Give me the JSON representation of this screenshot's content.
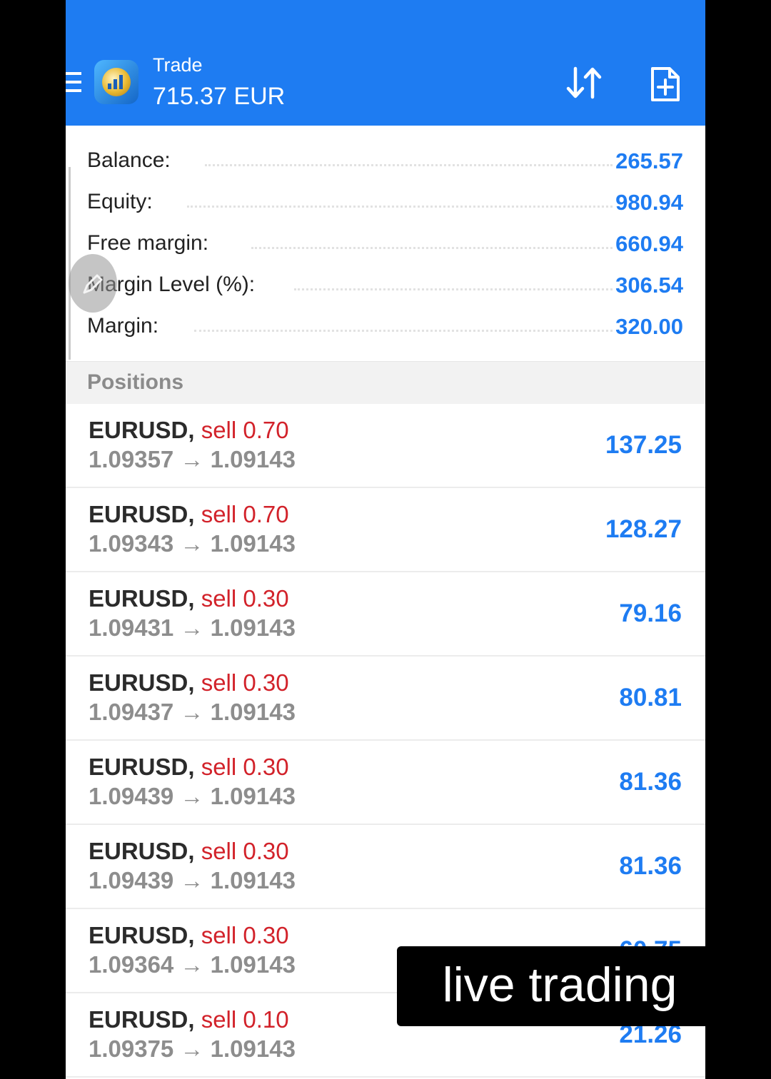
{
  "header": {
    "title": "Trade",
    "amount": "715.37 EUR",
    "icons": [
      "menu-icon",
      "app-logo",
      "sort-icon",
      "new-order-icon"
    ]
  },
  "summary": [
    {
      "label": "Balance:",
      "value": "265.57"
    },
    {
      "label": "Equity:",
      "value": "980.94"
    },
    {
      "label": "Free margin:",
      "value": "660.94"
    },
    {
      "label": "Margin Level (%):",
      "value": "306.54"
    },
    {
      "label": "Margin:",
      "value": "320.00"
    }
  ],
  "positions_header": "Positions",
  "positions": [
    {
      "symbol": "EURUSD,",
      "side": "sell 0.70",
      "open": "1.09357",
      "arrow": "→",
      "current": "1.09143",
      "profit": "137.25"
    },
    {
      "symbol": "EURUSD,",
      "side": "sell 0.70",
      "open": "1.09343",
      "arrow": "→",
      "current": "1.09143",
      "profit": "128.27"
    },
    {
      "symbol": "EURUSD,",
      "side": "sell 0.30",
      "open": "1.09431",
      "arrow": "→",
      "current": "1.09143",
      "profit": "79.16"
    },
    {
      "symbol": "EURUSD,",
      "side": "sell 0.30",
      "open": "1.09437",
      "arrow": "→",
      "current": "1.09143",
      "profit": "80.81"
    },
    {
      "symbol": "EURUSD,",
      "side": "sell 0.30",
      "open": "1.09439",
      "arrow": "→",
      "current": "1.09143",
      "profit": "81.36"
    },
    {
      "symbol": "EURUSD,",
      "side": "sell 0.30",
      "open": "1.09439",
      "arrow": "→",
      "current": "1.09143",
      "profit": "81.36"
    },
    {
      "symbol": "EURUSD,",
      "side": "sell 0.30",
      "open": "1.09364",
      "arrow": "→",
      "current": "1.09143",
      "profit": "60.75"
    },
    {
      "symbol": "EURUSD,",
      "side": "sell 0.10",
      "open": "1.09375",
      "arrow": "→",
      "current": "1.09143",
      "profit": "21.26"
    }
  ],
  "caption": "live trading",
  "colors": {
    "accent": "#1e7cf2",
    "sell": "#d2222a",
    "background": "#000000"
  }
}
